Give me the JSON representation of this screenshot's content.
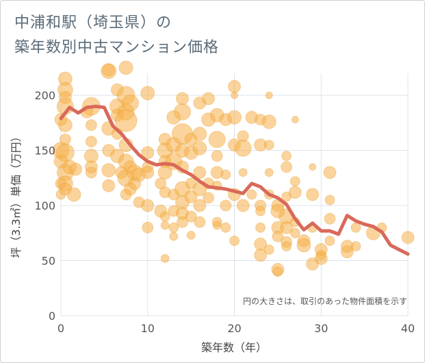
{
  "title_line1": "中浦和駅（埼玉県）の",
  "title_line2": "築年数別中古マンション価格",
  "chart_data": {
    "type": "scatter",
    "xlabel": "築年数（年）",
    "ylabel": "坪（3.3㎡）単価（万円）",
    "xlim": [
      0,
      40
    ],
    "ylim": [
      0,
      220
    ],
    "xticks": [
      0,
      10,
      20,
      30,
      40
    ],
    "yticks": [
      0,
      50,
      100,
      150,
      200
    ],
    "grid": true,
    "note": "円の大きさは、取引のあった物件面積を示す",
    "colors": {
      "bubble": "#f5b14a",
      "trend": "#d9695a",
      "grid": "#dde3ea"
    },
    "scatter": [
      {
        "x": 0,
        "y": 178,
        "s": 9
      },
      {
        "x": 0,
        "y": 150,
        "s": 12
      },
      {
        "x": 0,
        "y": 140,
        "s": 10
      },
      {
        "x": 0,
        "y": 120,
        "s": 8
      },
      {
        "x": 0,
        "y": 110,
        "s": 7
      },
      {
        "x": 0.5,
        "y": 215,
        "s": 10
      },
      {
        "x": 0.5,
        "y": 205,
        "s": 11
      },
      {
        "x": 0.5,
        "y": 198,
        "s": 9
      },
      {
        "x": 0.5,
        "y": 190,
        "s": 12
      },
      {
        "x": 0.5,
        "y": 173,
        "s": 10
      },
      {
        "x": 0.5,
        "y": 160,
        "s": 8
      },
      {
        "x": 0.5,
        "y": 148,
        "s": 13
      },
      {
        "x": 0.5,
        "y": 130,
        "s": 12
      },
      {
        "x": 0.5,
        "y": 120,
        "s": 11
      },
      {
        "x": 0.5,
        "y": 115,
        "s": 9
      },
      {
        "x": 1,
        "y": 135,
        "s": 10
      },
      {
        "x": 1.5,
        "y": 110,
        "s": 10
      },
      {
        "x": 1.7,
        "y": 133,
        "s": 9
      },
      {
        "x": 3,
        "y": 185,
        "s": 9
      },
      {
        "x": 3.5,
        "y": 190,
        "s": 13
      },
      {
        "x": 3.5,
        "y": 173,
        "s": 8
      },
      {
        "x": 3.5,
        "y": 158,
        "s": 8
      },
      {
        "x": 3.5,
        "y": 145,
        "s": 10
      },
      {
        "x": 3.5,
        "y": 135,
        "s": 9
      },
      {
        "x": 3.5,
        "y": 130,
        "s": 8
      },
      {
        "x": 5.5,
        "y": 223,
        "s": 9
      },
      {
        "x": 5.5,
        "y": 222,
        "s": 11
      },
      {
        "x": 5.5,
        "y": 170,
        "s": 10
      },
      {
        "x": 5.5,
        "y": 150,
        "s": 9
      },
      {
        "x": 5.5,
        "y": 132,
        "s": 10
      },
      {
        "x": 5.5,
        "y": 118,
        "s": 9
      },
      {
        "x": 6.5,
        "y": 205,
        "s": 9
      },
      {
        "x": 6.5,
        "y": 190,
        "s": 11
      },
      {
        "x": 6.5,
        "y": 182,
        "s": 9
      },
      {
        "x": 6.5,
        "y": 165,
        "s": 8
      },
      {
        "x": 6.5,
        "y": 145,
        "s": 10
      },
      {
        "x": 7,
        "y": 130,
        "s": 9
      },
      {
        "x": 7.5,
        "y": 225,
        "s": 10
      },
      {
        "x": 7.5,
        "y": 200,
        "s": 13
      },
      {
        "x": 7.5,
        "y": 185,
        "s": 12
      },
      {
        "x": 7.5,
        "y": 177,
        "s": 16
      },
      {
        "x": 7.5,
        "y": 155,
        "s": 10
      },
      {
        "x": 7.5,
        "y": 140,
        "s": 11
      },
      {
        "x": 7.5,
        "y": 125,
        "s": 12
      },
      {
        "x": 7.5,
        "y": 110,
        "s": 8
      },
      {
        "x": 8,
        "y": 193,
        "s": 12
      },
      {
        "x": 8,
        "y": 135,
        "s": 9
      },
      {
        "x": 8,
        "y": 115,
        "s": 9
      },
      {
        "x": 8.5,
        "y": 130,
        "s": 11
      },
      {
        "x": 8.5,
        "y": 120,
        "s": 9
      },
      {
        "x": 9,
        "y": 128,
        "s": 10
      },
      {
        "x": 9,
        "y": 103,
        "s": 8
      },
      {
        "x": 10,
        "y": 202,
        "s": 10
      },
      {
        "x": 10,
        "y": 148,
        "s": 9
      },
      {
        "x": 10,
        "y": 135,
        "s": 8
      },
      {
        "x": 10,
        "y": 130,
        "s": 9
      },
      {
        "x": 10,
        "y": 100,
        "s": 9
      },
      {
        "x": 10,
        "y": 80,
        "s": 8
      },
      {
        "x": 11.5,
        "y": 120,
        "s": 8
      },
      {
        "x": 11.5,
        "y": 95,
        "s": 9
      },
      {
        "x": 12,
        "y": 160,
        "s": 9
      },
      {
        "x": 12,
        "y": 150,
        "s": 11
      },
      {
        "x": 12,
        "y": 140,
        "s": 9
      },
      {
        "x": 12,
        "y": 130,
        "s": 10
      },
      {
        "x": 12,
        "y": 112,
        "s": 8
      },
      {
        "x": 12,
        "y": 90,
        "s": 7
      },
      {
        "x": 12,
        "y": 82,
        "s": 6
      },
      {
        "x": 12,
        "y": 52,
        "s": 6
      },
      {
        "x": 13,
        "y": 180,
        "s": 10
      },
      {
        "x": 13,
        "y": 155,
        "s": 11
      },
      {
        "x": 13,
        "y": 140,
        "s": 12
      },
      {
        "x": 13,
        "y": 110,
        "s": 8
      },
      {
        "x": 13,
        "y": 95,
        "s": 8
      },
      {
        "x": 13,
        "y": 80,
        "s": 7
      },
      {
        "x": 13,
        "y": 72,
        "s": 6
      },
      {
        "x": 14,
        "y": 197,
        "s": 9
      },
      {
        "x": 14,
        "y": 185,
        "s": 12
      },
      {
        "x": 14,
        "y": 165,
        "s": 15
      },
      {
        "x": 14,
        "y": 150,
        "s": 10
      },
      {
        "x": 14,
        "y": 135,
        "s": 9
      },
      {
        "x": 14,
        "y": 115,
        "s": 11
      },
      {
        "x": 14,
        "y": 103,
        "s": 10
      },
      {
        "x": 14,
        "y": 93,
        "s": 9
      },
      {
        "x": 14,
        "y": 85,
        "s": 8
      },
      {
        "x": 15,
        "y": 160,
        "s": 9
      },
      {
        "x": 15,
        "y": 148,
        "s": 10
      },
      {
        "x": 15,
        "y": 120,
        "s": 8
      },
      {
        "x": 15,
        "y": 108,
        "s": 9
      },
      {
        "x": 15,
        "y": 90,
        "s": 8
      },
      {
        "x": 15,
        "y": 73,
        "s": 6
      },
      {
        "x": 16,
        "y": 193,
        "s": 9
      },
      {
        "x": 16,
        "y": 165,
        "s": 10
      },
      {
        "x": 16,
        "y": 152,
        "s": 10
      },
      {
        "x": 16,
        "y": 130,
        "s": 9
      },
      {
        "x": 16,
        "y": 115,
        "s": 10
      },
      {
        "x": 16,
        "y": 100,
        "s": 9
      },
      {
        "x": 16,
        "y": 85,
        "s": 8
      },
      {
        "x": 17,
        "y": 197,
        "s": 9
      },
      {
        "x": 17,
        "y": 178,
        "s": 10
      },
      {
        "x": 17,
        "y": 120,
        "s": 8
      },
      {
        "x": 17,
        "y": 107,
        "s": 8
      },
      {
        "x": 18,
        "y": 182,
        "s": 10
      },
      {
        "x": 18,
        "y": 160,
        "s": 12
      },
      {
        "x": 18,
        "y": 145,
        "s": 8
      },
      {
        "x": 18,
        "y": 130,
        "s": 9
      },
      {
        "x": 18,
        "y": 118,
        "s": 7
      },
      {
        "x": 18,
        "y": 85,
        "s": 7
      },
      {
        "x": 18,
        "y": 82,
        "s": 6
      },
      {
        "x": 19,
        "y": 178,
        "s": 9
      },
      {
        "x": 19,
        "y": 128,
        "s": 7
      },
      {
        "x": 19,
        "y": 100,
        "s": 8
      },
      {
        "x": 19,
        "y": 80,
        "s": 7
      },
      {
        "x": 20,
        "y": 208,
        "s": 9
      },
      {
        "x": 20,
        "y": 200,
        "s": 5
      },
      {
        "x": 20,
        "y": 180,
        "s": 10
      },
      {
        "x": 20,
        "y": 155,
        "s": 9
      },
      {
        "x": 20,
        "y": 110,
        "s": 9
      },
      {
        "x": 20,
        "y": 68,
        "s": 7
      },
      {
        "x": 21,
        "y": 163,
        "s": 8
      },
      {
        "x": 21,
        "y": 152,
        "s": 12
      },
      {
        "x": 21,
        "y": 130,
        "s": 6
      },
      {
        "x": 21,
        "y": 100,
        "s": 9
      },
      {
        "x": 22,
        "y": 180,
        "s": 9
      },
      {
        "x": 22,
        "y": 110,
        "s": 7
      },
      {
        "x": 23,
        "y": 178,
        "s": 8
      },
      {
        "x": 23,
        "y": 155,
        "s": 9
      },
      {
        "x": 23,
        "y": 100,
        "s": 8
      },
      {
        "x": 23,
        "y": 95,
        "s": 7
      },
      {
        "x": 23,
        "y": 80,
        "s": 7
      },
      {
        "x": 23,
        "y": 65,
        "s": 9
      },
      {
        "x": 23,
        "y": 55,
        "s": 9
      },
      {
        "x": 24,
        "y": 200,
        "s": 5
      },
      {
        "x": 24,
        "y": 176,
        "s": 10
      },
      {
        "x": 24,
        "y": 155,
        "s": 7
      },
      {
        "x": 24,
        "y": 130,
        "s": 6
      },
      {
        "x": 24,
        "y": 110,
        "s": 7
      },
      {
        "x": 24,
        "y": 60,
        "s": 7
      },
      {
        "x": 25,
        "y": 100,
        "s": 9
      },
      {
        "x": 25,
        "y": 95,
        "s": 10
      },
      {
        "x": 25,
        "y": 80,
        "s": 9
      },
      {
        "x": 25,
        "y": 72,
        "s": 8
      },
      {
        "x": 25,
        "y": 42,
        "s": 9
      },
      {
        "x": 25,
        "y": 40,
        "s": 7
      },
      {
        "x": 26,
        "y": 145,
        "s": 7
      },
      {
        "x": 26,
        "y": 135,
        "s": 8
      },
      {
        "x": 26,
        "y": 108,
        "s": 7
      },
      {
        "x": 26,
        "y": 90,
        "s": 11
      },
      {
        "x": 26,
        "y": 80,
        "s": 9
      },
      {
        "x": 26,
        "y": 67,
        "s": 8
      },
      {
        "x": 26,
        "y": 63,
        "s": 7
      },
      {
        "x": 27,
        "y": 178,
        "s": 5
      },
      {
        "x": 27,
        "y": 122,
        "s": 7
      },
      {
        "x": 27,
        "y": 112,
        "s": 9
      },
      {
        "x": 27,
        "y": 85,
        "s": 7
      },
      {
        "x": 27,
        "y": 75,
        "s": 7
      },
      {
        "x": 28,
        "y": 68,
        "s": 9
      },
      {
        "x": 28,
        "y": 64,
        "s": 10
      },
      {
        "x": 29,
        "y": 135,
        "s": 5
      },
      {
        "x": 29,
        "y": 110,
        "s": 9
      },
      {
        "x": 29,
        "y": 80,
        "s": 7
      },
      {
        "x": 29,
        "y": 47,
        "s": 9
      },
      {
        "x": 30,
        "y": 60,
        "s": 9
      },
      {
        "x": 30,
        "y": 55,
        "s": 7
      },
      {
        "x": 30,
        "y": 52,
        "s": 9
      },
      {
        "x": 31,
        "y": 130,
        "s": 9
      },
      {
        "x": 31,
        "y": 105,
        "s": 7
      },
      {
        "x": 31,
        "y": 88,
        "s": 8
      },
      {
        "x": 31,
        "y": 68,
        "s": 7
      },
      {
        "x": 33,
        "y": 63,
        "s": 9
      },
      {
        "x": 33,
        "y": 58,
        "s": 9
      },
      {
        "x": 34,
        "y": 80,
        "s": 7
      },
      {
        "x": 34,
        "y": 63,
        "s": 7
      },
      {
        "x": 36,
        "y": 75,
        "s": 10
      },
      {
        "x": 37,
        "y": 80,
        "s": 7
      },
      {
        "x": 40,
        "y": 71,
        "s": 9
      }
    ],
    "trend": {
      "x": [
        0,
        1,
        2,
        3,
        4,
        5,
        6,
        7,
        8,
        9,
        10,
        11,
        12,
        13,
        14,
        15,
        16,
        17,
        18,
        19,
        20,
        21,
        22,
        23,
        24,
        25,
        26,
        27,
        28,
        29,
        30,
        31,
        32,
        33,
        34,
        35,
        36,
        37,
        38,
        39,
        40
      ],
      "y": [
        179,
        189,
        184,
        189,
        190,
        189,
        172,
        165,
        155,
        146,
        140,
        137,
        138,
        137,
        132,
        128,
        122,
        117,
        116,
        115,
        113,
        111,
        120,
        117,
        110,
        107,
        101,
        88,
        78,
        84,
        77,
        77,
        74,
        91,
        86,
        83,
        81,
        76,
        64,
        60,
        56
      ]
    }
  }
}
